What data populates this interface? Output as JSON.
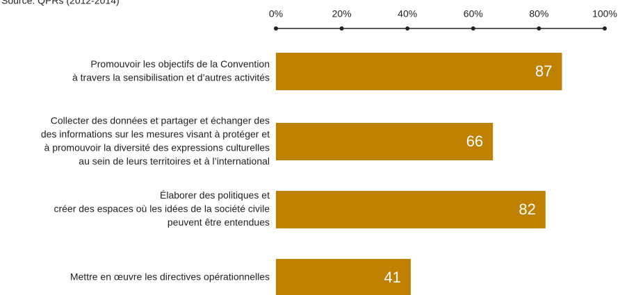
{
  "chart_data": {
    "type": "bar",
    "orientation": "horizontal",
    "source": "Source: QPRs (2012-2014)",
    "categories": [
      [
        "Promouvoir les objectifs de la Convention",
        "à travers la sensibilisation et d’autres activités"
      ],
      [
        "Collecter des données et partager et échanger des",
        "des informations sur les mesures visant à protéger et",
        "à promouvoir la diversité des expressions culturelles",
        "au sein de leurs territoires et à l’international"
      ],
      [
        "Élaborer des politiques et",
        "créer des espaces où les idées de la société civile",
        "peuvent être entendues"
      ],
      [
        "Mettre en œuvre les directives opérationnelles"
      ]
    ],
    "values": [
      87,
      66,
      82,
      41
    ],
    "color": "#c08000",
    "xlim": [
      0,
      100
    ],
    "xticks": [
      {
        "value": 0,
        "label": "0%"
      },
      {
        "value": 20,
        "label": "20%"
      },
      {
        "value": 40,
        "label": "40%"
      },
      {
        "value": 60,
        "label": "60%"
      },
      {
        "value": 80,
        "label": "80%"
      },
      {
        "value": 100,
        "label": "100%"
      }
    ]
  }
}
